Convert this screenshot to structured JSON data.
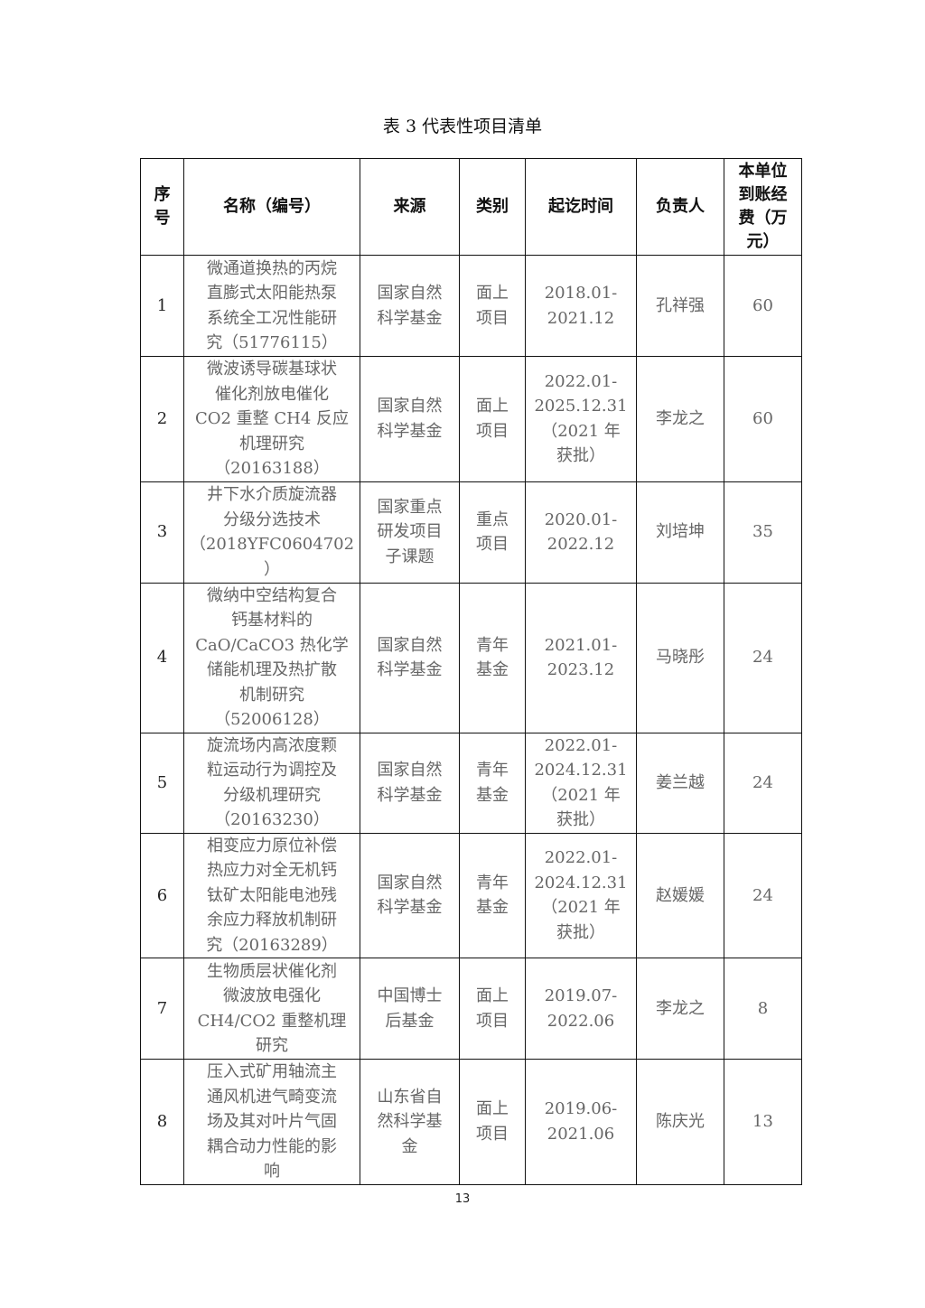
{
  "title": "表 3 代表性项目清单",
  "headers": [
    "序\n号",
    "名称（编号）",
    "来源",
    "类别",
    "起讫时间",
    "负责人",
    "本单位\n到账经\n费（万\n元）"
  ],
  "rows": [
    {
      "seq": "1",
      "name": "微通道换热的丙烷\n直膨式太阳能热泵\n系统全工况性能研\n究（51776115）",
      "source": "国家自然\n科学基金",
      "category": "面上\n项目",
      "period": "2018.01-\n2021.12",
      "leader": "孔祥强",
      "funding": "60"
    },
    {
      "seq": "2",
      "name": "微波诱导碳基球状\n催化剂放电催化\nCO2 重整 CH4 反应\n机理研究\n（20163188）",
      "source": "国家自然\n科学基金",
      "category": "面上\n项目",
      "period": "2022.01-\n2025.12.31\n（2021 年\n获批）",
      "leader": "李龙之",
      "funding": "60"
    },
    {
      "seq": "3",
      "name": "井下水介质旋流器\n分级分选技术\n（2018YFC0604702\n）",
      "source": "国家重点\n研发项目\n子课题",
      "category": "重点\n项目",
      "period": "2020.01-\n2022.12",
      "leader": "刘培坤",
      "funding": "35"
    },
    {
      "seq": "4",
      "name": "微纳中空结构复合\n钙基材料的\nCaO/CaCO3 热化学\n储能机理及热扩散\n机制研究\n（52006128）",
      "source": "国家自然\n科学基金",
      "category": "青年\n基金",
      "period": "2021.01-\n2023.12",
      "leader": "马晓彤",
      "funding": "24"
    },
    {
      "seq": "5",
      "name": "旋流场内高浓度颗\n粒运动行为调控及\n分级机理研究\n（20163230）",
      "source": "国家自然\n科学基金",
      "category": "青年\n基金",
      "period": "2022.01-\n2024.12.31\n（2021 年\n获批）",
      "leader": "姜兰越",
      "funding": "24"
    },
    {
      "seq": "6",
      "name": "相变应力原位补偿\n热应力对全无机钙\n钛矿太阳能电池残\n余应力释放机制研\n究（20163289）",
      "source": "国家自然\n科学基金",
      "category": "青年\n基金",
      "period": "2022.01-\n2024.12.31\n（2021 年\n获批）",
      "leader": "赵媛媛",
      "funding": "24"
    },
    {
      "seq": "7",
      "name": "生物质层状催化剂\n微波放电强化\nCH4/CO2 重整机理\n研究",
      "source": "中国博士\n后基金",
      "category": "面上\n项目",
      "period": "2019.07-\n2022.06",
      "leader": "李龙之",
      "funding": "8"
    },
    {
      "seq": "8",
      "name": "压入式矿用轴流主\n通风机进气畸变流\n场及其对叶片气固\n耦合动力性能的影\n响",
      "source": "山东省自\n然科学基\n金",
      "category": "面上\n项目",
      "period": "2019.06-\n2021.06",
      "leader": "陈庆光",
      "funding": "13"
    }
  ],
  "page_number": "13"
}
